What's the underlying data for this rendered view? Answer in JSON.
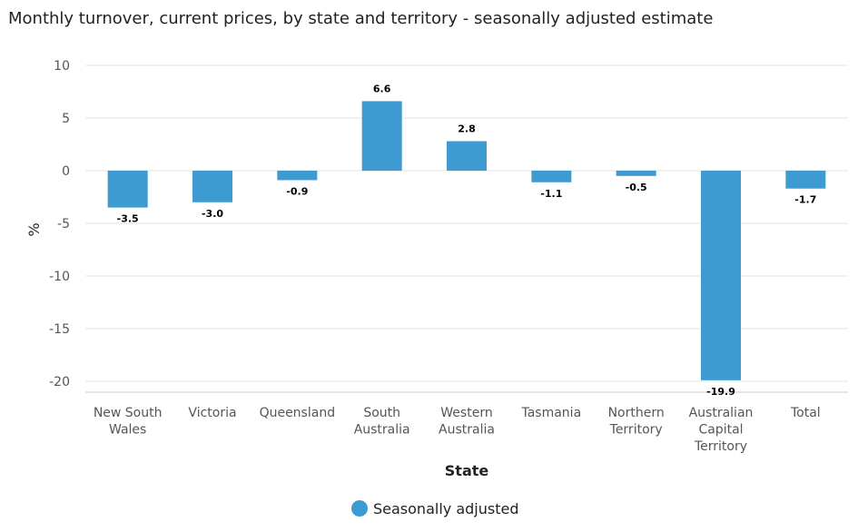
{
  "chart_data": {
    "type": "bar",
    "title": "Monthly turnover, current prices, by state and territory - seasonally adjusted estimate",
    "xlabel": "State",
    "ylabel": "%",
    "ylim": [
      -20,
      10
    ],
    "yticks": [
      10,
      5,
      0,
      -5,
      -10,
      -15,
      -20
    ],
    "categories": [
      [
        "New South",
        "Wales"
      ],
      [
        "Victoria"
      ],
      [
        "Queensland"
      ],
      [
        "South",
        "Australia"
      ],
      [
        "Western",
        "Australia"
      ],
      [
        "Tasmania"
      ],
      [
        "Northern",
        "Territory"
      ],
      [
        "Australian",
        "Capital",
        "Territory"
      ],
      [
        "Total"
      ]
    ],
    "series": [
      {
        "name": "Seasonally adjusted",
        "color": "#3d9bd1",
        "values": [
          -3.5,
          -3.0,
          -0.9,
          6.6,
          2.8,
          -1.1,
          -0.5,
          -19.9,
          -1.7
        ],
        "labels": [
          "-3.5",
          "-3.0",
          "-0.9",
          "6.6",
          "2.8",
          "-1.1",
          "-0.5",
          "-19.9",
          "-1.7"
        ]
      }
    ],
    "grid": true,
    "legend": "bottom-center"
  }
}
